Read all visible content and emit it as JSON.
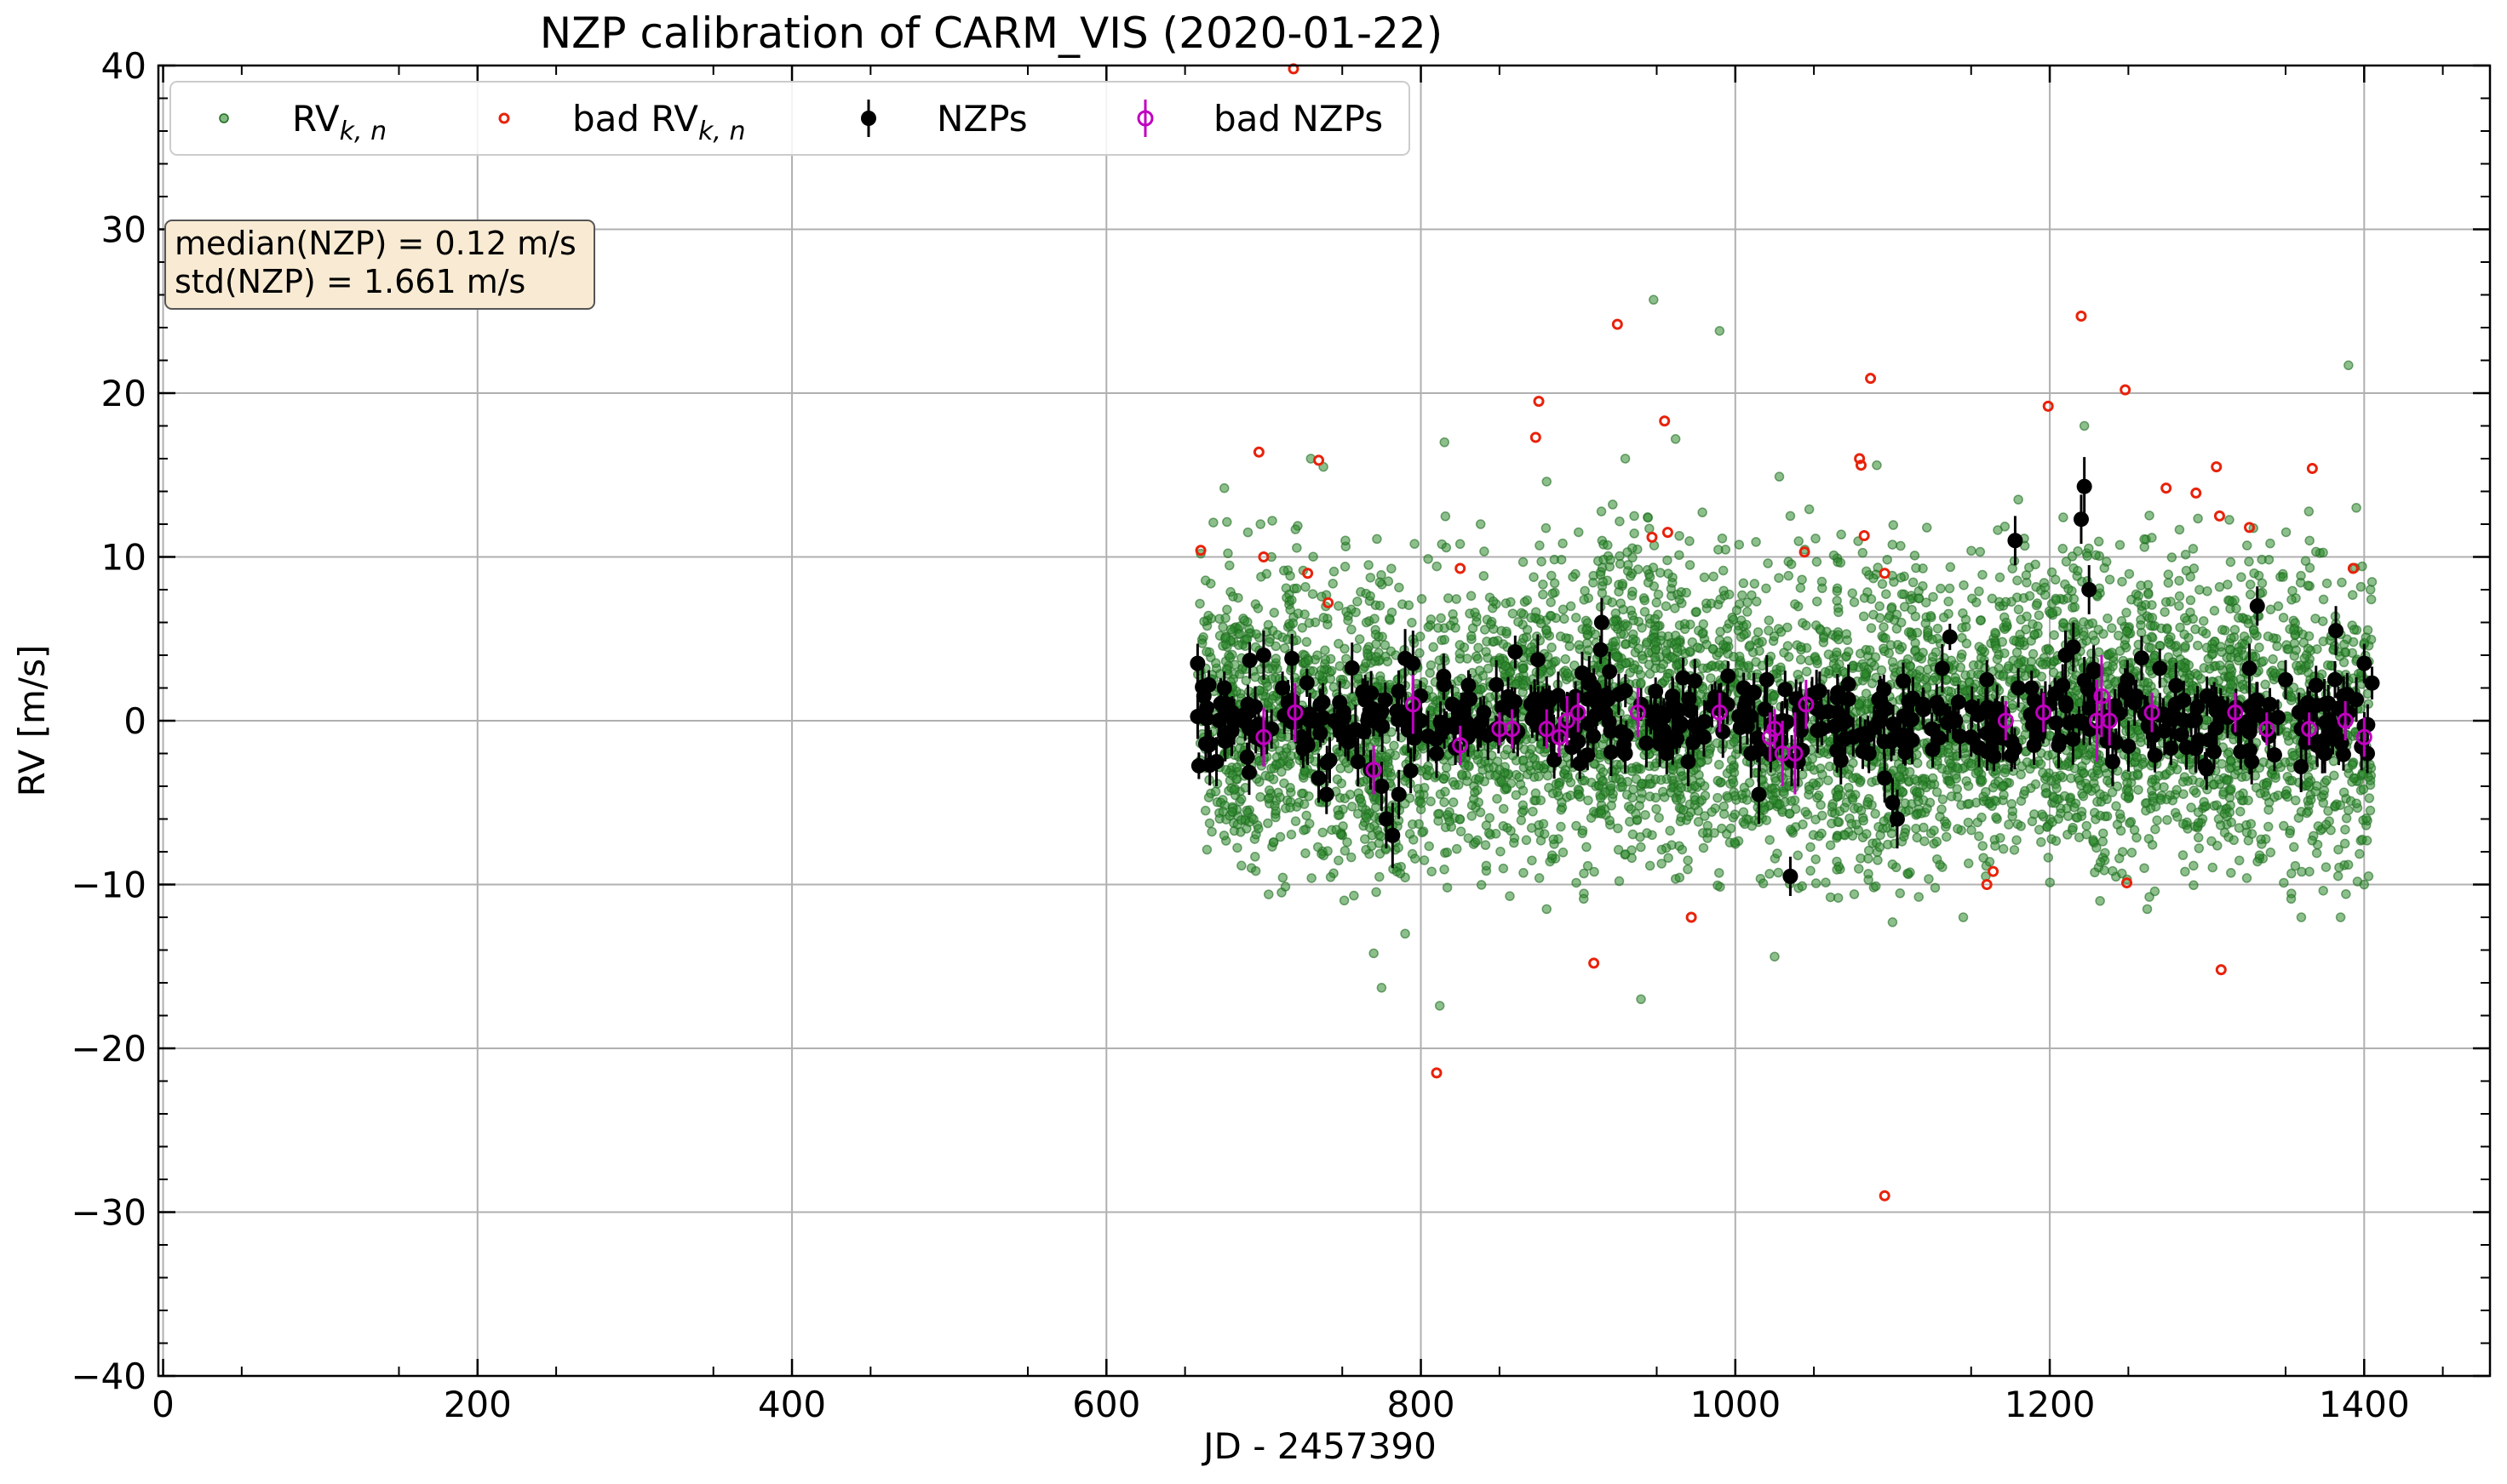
{
  "chart_data": {
    "type": "scatter",
    "title": "NZP calibration of CARM_VIS (2020-01-22)",
    "xlabel": "JD - 2457390",
    "ylabel": "RV [m/s]",
    "xlim": [
      -3,
      1480
    ],
    "ylim": [
      -40,
      40
    ],
    "x_ticks": [
      0,
      200,
      400,
      600,
      800,
      1000,
      1200,
      1400
    ],
    "y_ticks": [
      -40,
      -30,
      -20,
      -10,
      0,
      10,
      20,
      30,
      40
    ],
    "x_tick_labels": [
      "0",
      "200",
      "400",
      "600",
      "800",
      "1000",
      "1200",
      "1400"
    ],
    "y_tick_labels": [
      "−40",
      "−30",
      "−20",
      "−10",
      "0",
      "10",
      "20",
      "30",
      "40"
    ],
    "grid": true,
    "legend_position": "top-left",
    "legend": [
      {
        "kind": "rv",
        "label": "RV",
        "sub": "k, n",
        "color": "#2e8b2e"
      },
      {
        "kind": "badrv",
        "label": "bad RV",
        "sub": "k, n",
        "color": "#e8220a"
      },
      {
        "kind": "nzp",
        "label": "NZPs",
        "color": "#000000"
      },
      {
        "kind": "badnzp",
        "label": "bad NZPs",
        "color": "#c000c0"
      }
    ],
    "annotation": {
      "lines": [
        "median(NZP) = 0.12 m/s",
        "std(NZP) = 1.661 m/s"
      ],
      "position": "top-left",
      "background": "#f9ebd3"
    },
    "series": [
      {
        "name": "RV_{k,n}",
        "color": "#2e8b2e",
        "note": "dense cloud of several thousand points between JD-2457390 = 658 and 1405, mostly within -10 to +12 m/s",
        "x_range": [
          658,
          1405
        ],
        "points": [
          [
            660,
            10.2
          ],
          [
            668,
            12.1
          ],
          [
            675,
            14.2
          ],
          [
            690,
            11.5
          ],
          [
            698,
            12.0
          ],
          [
            705,
            10.0
          ],
          [
            730,
            16.0
          ],
          [
            738,
            15.5
          ],
          [
            752,
            11.0
          ],
          [
            770,
            -14.2
          ],
          [
            775,
            -16.3
          ],
          [
            790,
            -13.0
          ],
          [
            812,
            -17.4
          ],
          [
            815,
            17.0
          ],
          [
            838,
            12.0
          ],
          [
            880,
            14.6
          ],
          [
            922,
            13.2
          ],
          [
            930,
            16.0
          ],
          [
            948,
            25.7
          ],
          [
            962,
            17.2
          ],
          [
            990,
            23.8
          ],
          [
            1025,
            -14.4
          ],
          [
            1035,
            12.5
          ],
          [
            1090,
            15.6
          ],
          [
            1100,
            -12.3
          ],
          [
            1145,
            -12.0
          ],
          [
            1180,
            13.5
          ],
          [
            1222,
            18.0
          ],
          [
            1232,
            -11.0
          ],
          [
            1262,
            -11.5
          ],
          [
            1330,
            9.0
          ],
          [
            1360,
            -12.0
          ],
          [
            1385,
            -12.0
          ],
          [
            1390,
            21.7
          ],
          [
            1395,
            13.0
          ],
          [
            1400,
            -10.0
          ],
          [
            1404,
            8.0
          ],
          [
            940,
            -17.0
          ],
          [
            1028,
            14.9
          ],
          [
            880,
            -11.5
          ]
        ],
        "seed_clusters": [
          [
            660,
            1.0,
            4.2,
            80
          ],
          [
            700,
            0.0,
            4.5,
            120
          ],
          [
            750,
            -1.0,
            4.8,
            110
          ],
          [
            790,
            -0.5,
            4.5,
            100
          ],
          [
            840,
            0.0,
            4.2,
            110
          ],
          [
            890,
            0.5,
            4.5,
            120
          ],
          [
            940,
            1.5,
            5.0,
            150
          ],
          [
            990,
            0.5,
            4.5,
            120
          ],
          [
            1040,
            -0.5,
            4.5,
            110
          ],
          [
            1090,
            -1.0,
            5.0,
            140
          ],
          [
            1140,
            0.0,
            4.2,
            130
          ],
          [
            1190,
            1.0,
            4.5,
            120
          ],
          [
            1240,
            0.5,
            4.8,
            140
          ],
          [
            1290,
            0.5,
            4.5,
            130
          ],
          [
            1340,
            0.5,
            4.5,
            120
          ],
          [
            1390,
            -0.5,
            4.5,
            100
          ]
        ]
      },
      {
        "name": "bad RV_{k,n}",
        "color": "#e8220a",
        "points": [
          [
            660,
            10.4
          ],
          [
            697,
            16.4
          ],
          [
            700,
            10.0
          ],
          [
            719,
            39.8
          ],
          [
            728,
            9.0
          ],
          [
            735,
            15.9
          ],
          [
            741,
            7.2
          ],
          [
            825,
            9.3
          ],
          [
            810,
            -21.5
          ],
          [
            873,
            17.3
          ],
          [
            875,
            19.5
          ],
          [
            910,
            -14.8
          ],
          [
            925,
            24.2
          ],
          [
            947,
            11.2
          ],
          [
            955,
            18.3
          ],
          [
            957,
            11.5
          ],
          [
            972,
            -12.0
          ],
          [
            1044,
            10.3
          ],
          [
            1079,
            16.0
          ],
          [
            1080,
            15.6
          ],
          [
            1082,
            11.3
          ],
          [
            1086,
            20.9
          ],
          [
            1095,
            -29.0
          ],
          [
            1095,
            9.0
          ],
          [
            1160,
            -10.0
          ],
          [
            1164,
            -9.2
          ],
          [
            1199,
            19.2
          ],
          [
            1220,
            24.7
          ],
          [
            1248,
            20.2
          ],
          [
            1249,
            -9.9
          ],
          [
            1274,
            14.2
          ],
          [
            1293,
            13.9
          ],
          [
            1306,
            15.5
          ],
          [
            1308,
            12.5
          ],
          [
            1309,
            -15.2
          ],
          [
            1327,
            11.8
          ],
          [
            1367,
            15.4
          ],
          [
            1393,
            9.3
          ]
        ]
      },
      {
        "name": "NZPs",
        "color": "#000000",
        "points": [
          [
            658,
            3.5,
            1.2
          ],
          [
            662,
            1.5,
            1.0
          ],
          [
            665,
            -1.5,
            1.2
          ],
          [
            670,
            -2.5,
            1.5
          ],
          [
            675,
            2.0,
            1.0
          ],
          [
            680,
            0.5,
            1.0
          ],
          [
            690,
            1.0,
            1.2
          ],
          [
            695,
            -1.0,
            1.0
          ],
          [
            700,
            4.0,
            1.5
          ],
          [
            705,
            -0.5,
            1.2
          ],
          [
            712,
            2.0,
            1.0
          ],
          [
            718,
            3.8,
            1.5
          ],
          [
            722,
            0.5,
            1.0
          ],
          [
            728,
            -1.5,
            1.2
          ],
          [
            735,
            -3.5,
            1.5
          ],
          [
            740,
            -4.5,
            1.2
          ],
          [
            745,
            0.0,
            1.0
          ],
          [
            752,
            -1.0,
            1.2
          ],
          [
            760,
            -2.5,
            1.5
          ],
          [
            768,
            -3.0,
            1.2
          ],
          [
            775,
            -4.0,
            1.5
          ],
          [
            778,
            -6.0,
            1.8
          ],
          [
            782,
            -7.0,
            2.0
          ],
          [
            786,
            -4.5,
            1.5
          ],
          [
            790,
            3.8,
            1.8
          ],
          [
            795,
            3.5,
            2.0
          ],
          [
            800,
            0.0,
            1.2
          ],
          [
            810,
            -2.0,
            1.5
          ],
          [
            820,
            1.0,
            1.2
          ],
          [
            830,
            -1.0,
            1.2
          ],
          [
            840,
            0.5,
            1.0
          ],
          [
            848,
            2.2,
            1.5
          ],
          [
            860,
            4.2,
            1.0
          ],
          [
            870,
            1.0,
            1.2
          ],
          [
            880,
            1.5,
            1.2
          ],
          [
            890,
            -0.5,
            1.0
          ],
          [
            900,
            0.5,
            1.0
          ],
          [
            910,
            2.0,
            1.2
          ],
          [
            915,
            6.0,
            1.5
          ],
          [
            920,
            3.0,
            1.2
          ],
          [
            930,
            -2.0,
            1.2
          ],
          [
            940,
            1.0,
            1.0
          ],
          [
            950,
            0.0,
            1.0
          ],
          [
            960,
            1.5,
            1.2
          ],
          [
            970,
            -2.5,
            1.5
          ],
          [
            980,
            -1.0,
            1.2
          ],
          [
            995,
            1.0,
            1.2
          ],
          [
            1010,
            -2.0,
            1.5
          ],
          [
            1015,
            -4.5,
            1.8
          ],
          [
            1020,
            2.5,
            1.5
          ],
          [
            1030,
            0.0,
            1.2
          ],
          [
            1035,
            -9.5,
            1.2
          ],
          [
            1040,
            -2.5,
            1.5
          ],
          [
            1055,
            -0.5,
            1.0
          ],
          [
            1065,
            0.5,
            1.0
          ],
          [
            1075,
            -1.0,
            1.2
          ],
          [
            1085,
            -2.0,
            1.2
          ],
          [
            1095,
            -3.5,
            1.5
          ],
          [
            1100,
            -5.0,
            1.5
          ],
          [
            1103,
            -6.0,
            1.8
          ],
          [
            1110,
            -1.0,
            1.2
          ],
          [
            1125,
            -0.5,
            1.0
          ],
          [
            1140,
            0.0,
            1.0
          ],
          [
            1150,
            -1.0,
            1.2
          ],
          [
            1160,
            2.5,
            1.2
          ],
          [
            1170,
            0.5,
            1.0
          ],
          [
            1178,
            11.0,
            1.5
          ],
          [
            1180,
            2.0,
            1.2
          ],
          [
            1190,
            -1.5,
            1.2
          ],
          [
            1200,
            1.0,
            1.2
          ],
          [
            1210,
            4.0,
            1.5
          ],
          [
            1215,
            4.5,
            1.5
          ],
          [
            1220,
            12.3,
            1.5
          ],
          [
            1222,
            14.3,
            1.8
          ],
          [
            1225,
            8.0,
            1.5
          ],
          [
            1228,
            3.0,
            1.2
          ],
          [
            1235,
            -0.5,
            1.0
          ],
          [
            1240,
            -2.5,
            1.5
          ],
          [
            1248,
            2.0,
            1.2
          ],
          [
            1255,
            1.5,
            1.0
          ],
          [
            1262,
            0.5,
            1.0
          ],
          [
            1270,
            3.2,
            1.2
          ],
          [
            1280,
            1.0,
            1.0
          ],
          [
            1290,
            0.0,
            1.0
          ],
          [
            1300,
            1.5,
            1.2
          ],
          [
            1310,
            0.5,
            1.0
          ],
          [
            1320,
            -0.5,
            1.0
          ],
          [
            1327,
            3.2,
            1.5
          ],
          [
            1332,
            7.0,
            1.2
          ],
          [
            1340,
            1.0,
            1.0
          ],
          [
            1350,
            2.5,
            1.2
          ],
          [
            1360,
            -0.5,
            1.0
          ],
          [
            1370,
            -1.5,
            1.2
          ],
          [
            1375,
            -2.0,
            1.2
          ],
          [
            1382,
            5.5,
            1.5
          ],
          [
            1390,
            0.5,
            1.0
          ],
          [
            1400,
            3.5,
            1.2
          ],
          [
            1402,
            -2.0,
            1.2
          ],
          [
            1405,
            2.3,
            1.0
          ]
        ]
      },
      {
        "name": "bad NZPs",
        "color": "#c000c0",
        "points": [
          [
            700,
            -1.0,
            1.8
          ],
          [
            720,
            0.5,
            1.8
          ],
          [
            770,
            -3.0,
            1.5
          ],
          [
            795,
            1.0,
            1.8
          ],
          [
            825,
            -1.5,
            1.2
          ],
          [
            850,
            -0.5,
            1.0
          ],
          [
            858,
            -0.5,
            1.2
          ],
          [
            880,
            -0.5,
            1.2
          ],
          [
            888,
            -1.0,
            1.2
          ],
          [
            893,
            0.0,
            1.5
          ],
          [
            900,
            0.5,
            1.2
          ],
          [
            938,
            0.5,
            1.5
          ],
          [
            990,
            0.5,
            1.2
          ],
          [
            1022,
            -1.0,
            1.5
          ],
          [
            1025,
            -0.5,
            1.2
          ],
          [
            1030,
            -2.0,
            2.0
          ],
          [
            1038,
            -2.0,
            2.5
          ],
          [
            1045,
            1.0,
            1.5
          ],
          [
            1172,
            0.0,
            1.2
          ],
          [
            1196,
            0.5,
            1.2
          ],
          [
            1230,
            0.0,
            2.5
          ],
          [
            1233,
            1.5,
            2.5
          ],
          [
            1238,
            0.0,
            1.5
          ],
          [
            1265,
            0.5,
            1.2
          ],
          [
            1318,
            0.5,
            1.2
          ],
          [
            1338,
            -0.5,
            1.0
          ],
          [
            1365,
            -0.5,
            1.0
          ],
          [
            1388,
            0.0,
            1.2
          ],
          [
            1400,
            -1.0,
            1.2
          ]
        ]
      }
    ]
  }
}
